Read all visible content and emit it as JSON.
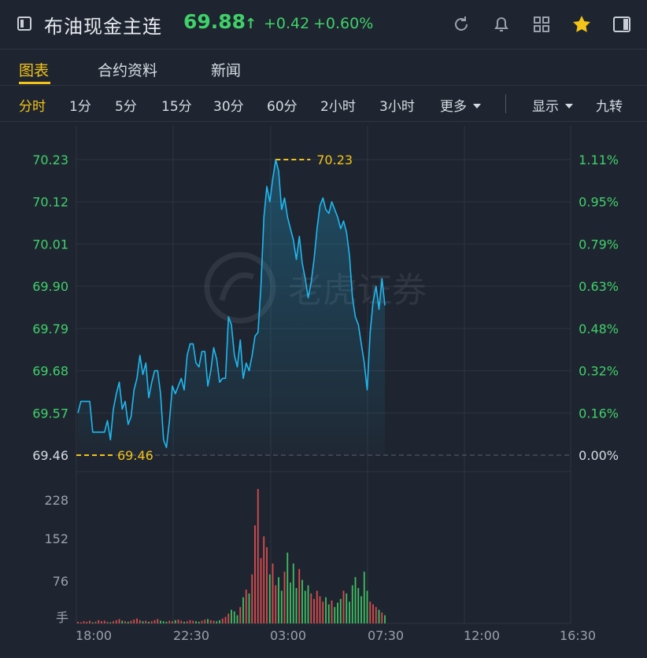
{
  "header": {
    "title": "布油现金主连",
    "price": "69.88",
    "change": "+0.42",
    "change_pct": "+0.60%",
    "icons": [
      "window-icon",
      "refresh-icon",
      "bell-icon",
      "grid-icon",
      "star-icon",
      "panel-icon"
    ],
    "colors": {
      "up": "#3fd16a",
      "accent": "#f2c318",
      "line": "#1fb8ef"
    }
  },
  "tabs": [
    {
      "label": "图表",
      "active": true
    },
    {
      "label": "合约资料",
      "active": false
    },
    {
      "label": "新闻",
      "active": false
    }
  ],
  "periods": [
    {
      "label": "分时",
      "active": true
    },
    {
      "label": "1分"
    },
    {
      "label": "5分"
    },
    {
      "label": "15分"
    },
    {
      "label": "30分"
    },
    {
      "label": "60分"
    },
    {
      "label": "2小时"
    },
    {
      "label": "3小时"
    },
    {
      "label": "更多"
    },
    {
      "label": "显示"
    },
    {
      "label": "九转"
    }
  ],
  "watermark": "老虎证券",
  "chart_data": {
    "type": "line",
    "price_axis": [
      "70.23",
      "70.12",
      "70.01",
      "69.90",
      "69.79",
      "69.68",
      "69.57",
      "69.46"
    ],
    "pct_axis": [
      "1.11%",
      "0.95%",
      "0.79%",
      "0.63%",
      "0.48%",
      "0.32%",
      "0.16%",
      "0.00%"
    ],
    "ylim": [
      69.46,
      70.23
    ],
    "prev_close": 69.46,
    "high_label": "70.23",
    "low_label": "69.46",
    "x_ticks": [
      "18:00",
      "22:30",
      "03:00",
      "07:30",
      "12:00",
      "16:30"
    ],
    "volume_axis": [
      "228",
      "152",
      "76",
      "手"
    ],
    "series": [
      {
        "values": [
          69.57,
          69.6,
          69.6,
          69.6,
          69.6,
          69.52,
          69.52,
          69.52,
          69.52,
          69.52,
          69.55,
          69.5,
          69.58,
          69.62,
          69.65,
          69.58,
          69.6,
          69.54,
          69.56,
          69.63,
          69.66,
          69.72,
          69.67,
          69.7,
          69.61,
          69.65,
          69.68,
          69.68,
          69.62,
          69.5,
          69.48,
          69.55,
          69.64,
          69.62,
          69.64,
          69.66,
          69.63,
          69.72,
          69.75,
          69.75,
          69.7,
          69.69,
          69.73,
          69.73,
          69.64,
          69.68,
          69.74,
          69.71,
          69.65,
          69.66,
          69.66,
          69.82,
          69.8,
          69.72,
          69.69,
          69.76,
          69.66,
          69.7,
          69.68,
          69.72,
          69.77,
          69.78,
          69.9,
          70.08,
          70.16,
          70.12,
          70.18,
          70.23,
          70.2,
          70.1,
          70.13,
          70.08,
          70.05,
          70.02,
          69.97,
          70.03,
          69.96,
          69.92,
          69.87,
          69.91,
          69.97,
          70.05,
          70.11,
          70.13,
          70.1,
          70.09,
          70.12,
          70.1,
          70.08,
          70.05,
          70.07,
          70.04,
          69.98,
          69.87,
          69.82,
          69.8,
          69.75,
          69.7,
          69.63,
          69.78,
          69.86,
          69.9,
          69.84,
          69.92,
          69.85
        ],
        "volume": [
          3,
          2,
          4,
          3,
          5,
          2,
          3,
          6,
          4,
          5,
          3,
          2,
          4,
          6,
          8,
          5,
          4,
          3,
          5,
          7,
          9,
          6,
          4,
          5,
          3,
          4,
          6,
          8,
          5,
          4,
          3,
          5,
          4,
          6,
          7,
          5,
          3,
          4,
          6,
          5,
          4,
          3,
          5,
          7,
          8,
          6,
          5,
          4,
          6,
          9,
          12,
          18,
          25,
          22,
          15,
          30,
          48,
          62,
          55,
          90,
          180,
          247,
          120,
          160,
          140,
          90,
          110,
          70,
          85,
          60,
          95,
          130,
          75,
          110,
          65,
          100,
          80,
          60,
          70,
          55,
          45,
          60,
          50,
          40,
          48,
          35,
          42,
          30,
          38,
          45,
          60,
          55,
          40,
          70,
          85,
          65,
          50,
          95,
          60,
          40,
          35,
          30,
          25,
          20,
          15
        ]
      }
    ]
  }
}
